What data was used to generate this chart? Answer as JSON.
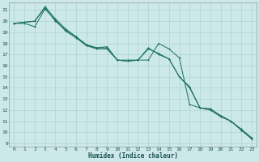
{
  "xlabel": "Humidex (Indice chaleur)",
  "background_color": "#cce8e8",
  "grid_color": "#aad4d4",
  "line_color": "#1a7060",
  "xlim": [
    -0.5,
    23.5
  ],
  "ylim": [
    8.7,
    21.7
  ],
  "yticks": [
    9,
    10,
    11,
    12,
    13,
    14,
    15,
    16,
    17,
    18,
    19,
    20,
    21
  ],
  "xticks": [
    0,
    1,
    2,
    3,
    4,
    5,
    6,
    7,
    8,
    9,
    10,
    11,
    12,
    13,
    14,
    15,
    16,
    17,
    18,
    19,
    20,
    21,
    22,
    23
  ],
  "line1_x": [
    0,
    1,
    2,
    3,
    4,
    5,
    6,
    7,
    8,
    9,
    10,
    11,
    12,
    13,
    14,
    15,
    16,
    17,
    18,
    19,
    20,
    21,
    22,
    23
  ],
  "line1_y": [
    19.8,
    19.9,
    20.0,
    21.3,
    20.2,
    19.3,
    18.6,
    17.9,
    17.6,
    17.6,
    16.5,
    16.5,
    16.5,
    17.6,
    17.0,
    16.6,
    15.0,
    14.1,
    12.2,
    12.1,
    11.5,
    11.0,
    10.2,
    9.5
  ],
  "line2_x": [
    0,
    1,
    2,
    3,
    4,
    5,
    6,
    7,
    8,
    9,
    10,
    11,
    12,
    13,
    14,
    15,
    16,
    17,
    18,
    19,
    20,
    21,
    22,
    23
  ],
  "line2_y": [
    19.8,
    19.9,
    20.0,
    21.2,
    20.0,
    19.2,
    18.6,
    17.8,
    17.6,
    17.7,
    16.5,
    16.4,
    16.5,
    16.5,
    18.0,
    17.5,
    16.7,
    12.5,
    12.2,
    12.1,
    11.5,
    11.0,
    10.3,
    9.5
  ],
  "line3_x": [
    0,
    1,
    2,
    3,
    4,
    5,
    6,
    7,
    8,
    9,
    10,
    11,
    12,
    13,
    14,
    15,
    16,
    17,
    18,
    19,
    20,
    21,
    22,
    23
  ],
  "line3_y": [
    19.8,
    19.8,
    19.5,
    21.1,
    20.1,
    19.1,
    18.5,
    17.8,
    17.5,
    17.5,
    16.5,
    16.4,
    16.5,
    17.5,
    17.1,
    16.6,
    15.0,
    14.0,
    12.2,
    12.0,
    11.4,
    11.0,
    10.2,
    9.4
  ]
}
